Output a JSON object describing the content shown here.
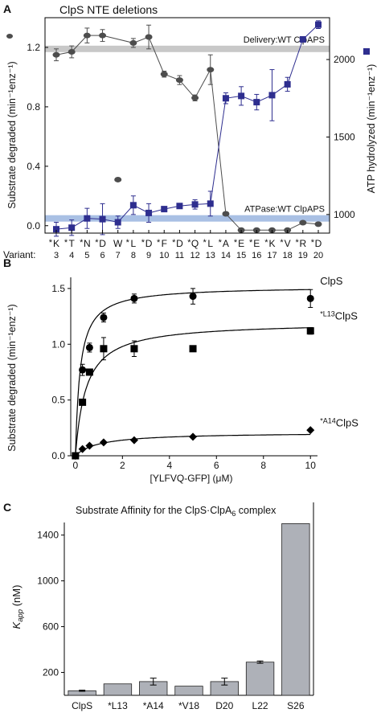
{
  "chart_data": [
    {
      "panel_label": "A",
      "type": "line",
      "title": "ClpS NTE deletions",
      "ylabel_left": "Substrate degraded (min⁻¹enz⁻¹)",
      "ylabel_right": "ATP hydrolyzed (min⁻¹enz⁻¹)",
      "xlabel": "Variant:",
      "ylim_left": [
        -0.05,
        1.4
      ],
      "ylim_right": [
        880,
        2270
      ],
      "yticks_left": [
        "0.0",
        "0.4",
        "0.8",
        "1.2"
      ],
      "yticks_right": [
        "1000",
        "1500",
        "2000"
      ],
      "x_residues": [
        "K",
        "T",
        "N",
        "D",
        "W",
        "L",
        "D",
        "F",
        "D",
        "Q",
        "L",
        "A",
        "E",
        "E",
        "K",
        "V",
        "R",
        "D"
      ],
      "x_numbers": [
        "3",
        "4",
        "5",
        "6",
        "7",
        "8",
        "9",
        "10",
        "11",
        "12",
        "13",
        "14",
        "15",
        "16",
        "17",
        "18",
        "19",
        "20"
      ],
      "x_asterisk": [
        true,
        true,
        true,
        true,
        false,
        true,
        true,
        true,
        true,
        true,
        true,
        true,
        true,
        true,
        true,
        true,
        true,
        true
      ],
      "x_positions": [
        3,
        4,
        5,
        6,
        7,
        8,
        9,
        10,
        11,
        12,
        13,
        14,
        15,
        16,
        17,
        18,
        19,
        20
      ],
      "reference_lines": [
        {
          "label": "Delivery:WT ClpAPS",
          "axis": "left",
          "value": 1.19,
          "color": "#c8c8c8"
        },
        {
          "label": "ATPase:WT ClpAPS",
          "axis": "right",
          "value": 975,
          "color": "#a9c0e4"
        }
      ],
      "series": [
        {
          "axis": "left",
          "marker": "circle",
          "color": "#4d4d4d",
          "points": [
            {
              "x": 3,
              "y": 1.15,
              "err": 0.04
            },
            {
              "x": 4,
              "y": 1.17,
              "err": 0.04
            },
            {
              "x": 5,
              "y": 1.28,
              "err": 0.05
            },
            {
              "x": 6,
              "y": 1.28,
              "err": 0.04
            },
            {
              "x": 8,
              "y": 1.23,
              "err": 0.03
            },
            {
              "x": 9,
              "y": 1.27,
              "err": 0.08
            },
            {
              "x": 10,
              "y": 1.02,
              "err": 0.02
            },
            {
              "x": 11,
              "y": 0.98,
              "err": 0.03
            },
            {
              "x": 12,
              "y": 0.86,
              "err": 0.02
            },
            {
              "x": 13,
              "y": 1.05,
              "err": 0.1
            },
            {
              "x": 14,
              "y": 0.08,
              "err": 0.0
            },
            {
              "x": 15,
              "y": -0.03,
              "err": 0.0
            },
            {
              "x": 16,
              "y": -0.03,
              "err": 0.0
            },
            {
              "x": 17,
              "y": -0.03,
              "err": 0.0
            },
            {
              "x": 18,
              "y": -0.03,
              "err": 0.0
            },
            {
              "x": 19,
              "y": 0.02,
              "err": 0.0
            },
            {
              "x": 20,
              "y": 0.01,
              "err": 0.0
            }
          ]
        },
        {
          "axis": "left",
          "marker": "circle",
          "color": "#4d4d4d",
          "connect": false,
          "points": [
            {
              "x": 7,
              "y": 0.31,
              "err": 0.0
            }
          ]
        },
        {
          "axis": "right",
          "marker": "square",
          "color": "#2e2e8f",
          "points": [
            {
              "x": 3,
              "y": 905,
              "err": 45
            },
            {
              "x": 4,
              "y": 915,
              "err": 50
            },
            {
              "x": 5,
              "y": 975,
              "err": 65
            },
            {
              "x": 6,
              "y": 970,
              "err": 100
            },
            {
              "x": 7,
              "y": 950,
              "err": 40
            },
            {
              "x": 8,
              "y": 1060,
              "err": 60
            },
            {
              "x": 9,
              "y": 1010,
              "err": 60
            },
            {
              "x": 10,
              "y": 1035,
              "err": 10
            },
            {
              "x": 11,
              "y": 1055,
              "err": 10
            },
            {
              "x": 12,
              "y": 1065,
              "err": 30
            },
            {
              "x": 13,
              "y": 1070,
              "err": 80
            },
            {
              "x": 14,
              "y": 1750,
              "err": 35
            },
            {
              "x": 15,
              "y": 1765,
              "err": 60
            },
            {
              "x": 16,
              "y": 1725,
              "err": 50
            },
            {
              "x": 17,
              "y": 1770,
              "err": 165
            },
            {
              "x": 18,
              "y": 1840,
              "err": 45
            },
            {
              "x": 19,
              "y": 2130,
              "err": 0
            },
            {
              "x": 20,
              "y": 2225,
              "err": 25
            }
          ]
        }
      ]
    },
    {
      "panel_label": "B",
      "type": "scatter",
      "xlabel": "[YLFVQ-GFP] (μM)",
      "ylabel": "Substrate degraded (min⁻¹enz⁻¹)",
      "xlim": [
        -0.2,
        10.3
      ],
      "ylim": [
        0,
        1.6
      ],
      "xticks": [
        0,
        2,
        4,
        6,
        8,
        10
      ],
      "yticks": [
        0,
        0.5,
        1.0,
        1.5
      ],
      "ytick_labels": [
        "0.0",
        "0.5",
        "1.0",
        "1.5"
      ],
      "series": [
        {
          "name": "ClpS",
          "marker": "circle",
          "fit": {
            "vmax": 1.52,
            "km": 0.2
          },
          "points": [
            {
              "x": 0,
              "y": 0,
              "err": 0
            },
            {
              "x": 0.3,
              "y": 0.77,
              "err": 0.05
            },
            {
              "x": 0.6,
              "y": 0.97,
              "err": 0.04
            },
            {
              "x": 1.2,
              "y": 1.24,
              "err": 0.04
            },
            {
              "x": 2.5,
              "y": 1.41,
              "err": 0.04
            },
            {
              "x": 5,
              "y": 1.43,
              "err": 0.07
            },
            {
              "x": 10,
              "y": 1.41,
              "err": 0.08
            }
          ]
        },
        {
          "name": "L13",
          "name_prefix": "*",
          "name_suffix": "ClpS",
          "marker": "square",
          "fit": {
            "vmax": 1.2,
            "km": 0.45
          },
          "points": [
            {
              "x": 0,
              "y": 0,
              "err": 0
            },
            {
              "x": 0.3,
              "y": 0.48,
              "err": 0
            },
            {
              "x": 0.6,
              "y": 0.75,
              "err": 0
            },
            {
              "x": 1.2,
              "y": 0.96,
              "err": 0.1
            },
            {
              "x": 2.5,
              "y": 0.96,
              "err": 0.07
            },
            {
              "x": 5,
              "y": 0.96,
              "err": 0
            },
            {
              "x": 10,
              "y": 1.12,
              "err": 0.03
            }
          ]
        },
        {
          "name": "A14",
          "name_prefix": "*",
          "name_suffix": "ClpS",
          "marker": "diamond",
          "fit": {
            "vmax": 0.21,
            "km": 1.0
          },
          "points": [
            {
              "x": 0,
              "y": 0,
              "err": 0
            },
            {
              "x": 0.3,
              "y": 0.06,
              "err": 0
            },
            {
              "x": 0.6,
              "y": 0.09,
              "err": 0
            },
            {
              "x": 1.2,
              "y": 0.12,
              "err": 0
            },
            {
              "x": 2.5,
              "y": 0.14,
              "err": 0
            },
            {
              "x": 5,
              "y": 0.17,
              "err": 0
            },
            {
              "x": 10,
              "y": 0.23,
              "err": 0
            }
          ]
        }
      ]
    },
    {
      "panel_label": "C",
      "type": "bar",
      "title_prefix": "Substrate Affinity for the ClpS·ClpA",
      "title_sub": "6",
      "title_suffix": " complex",
      "ylabel_main": "K",
      "ylabel_sub": "app",
      "ylabel_unit": " (nM)",
      "ylim": [
        0,
        1510
      ],
      "yticks": [
        200,
        600,
        1000,
        1400
      ],
      "categories": [
        "ClpS",
        "*L13",
        "*A14",
        "*V18",
        "D20",
        "L22",
        "S26"
      ],
      "values": [
        40,
        100,
        120,
        80,
        120,
        290,
        1500
      ],
      "errors": [
        5,
        0,
        30,
        0,
        30,
        10,
        0
      ],
      "bar_color": "#aeb1b8"
    }
  ]
}
